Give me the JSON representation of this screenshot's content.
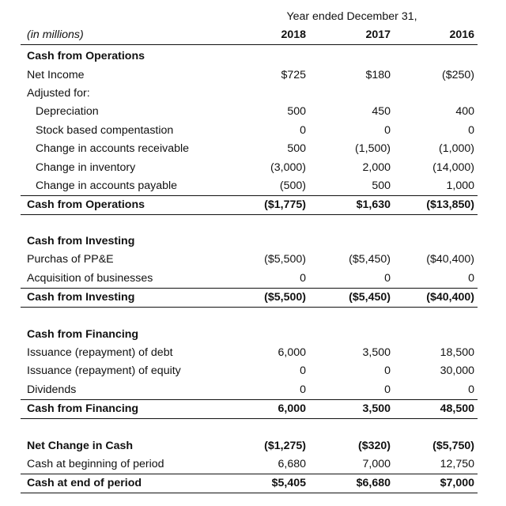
{
  "header": {
    "period_caption": "Year ended December 31,",
    "units_label": "(in millions)",
    "years": [
      "2018",
      "2017",
      "2016"
    ]
  },
  "sections": {
    "operations": {
      "heading": "Cash from Operations",
      "net_income": {
        "label": "Net Income",
        "values": [
          "$725",
          "$180",
          "($250)"
        ]
      },
      "adjusted_for": "Adjusted for:",
      "items": [
        {
          "label": "Depreciation",
          "values": [
            "500",
            "450",
            "400"
          ]
        },
        {
          "label": "Stock based compentastion",
          "values": [
            "0",
            "0",
            "0"
          ]
        },
        {
          "label": "Change in accounts receivable",
          "values": [
            "500",
            "(1,500)",
            "(1,000)"
          ]
        },
        {
          "label": "Change in inventory",
          "values": [
            "(3,000)",
            "2,000",
            "(14,000)"
          ]
        },
        {
          "label": "Change in accounts payable",
          "values": [
            "(500)",
            "500",
            "1,000"
          ]
        }
      ],
      "total": {
        "label": "Cash from Operations",
        "values": [
          "($1,775)",
          "$1,630",
          "($13,850)"
        ]
      }
    },
    "investing": {
      "heading": "Cash from Investing",
      "items": [
        {
          "label": "Purchas of PP&E",
          "values": [
            "($5,500)",
            "($5,450)",
            "($40,400)"
          ]
        },
        {
          "label": "Acquisition of businesses",
          "values": [
            "0",
            "0",
            "0"
          ]
        }
      ],
      "total": {
        "label": "Cash from Investing",
        "values": [
          "($5,500)",
          "($5,450)",
          "($40,400)"
        ]
      }
    },
    "financing": {
      "heading": "Cash from Financing",
      "items": [
        {
          "label": "Issuance (repayment) of debt",
          "values": [
            "6,000",
            "3,500",
            "18,500"
          ]
        },
        {
          "label": "Issuance (repayment) of equity",
          "values": [
            "0",
            "0",
            "30,000"
          ]
        },
        {
          "label": "Dividends",
          "values": [
            "0",
            "0",
            "0"
          ]
        }
      ],
      "total": {
        "label": "Cash from Financing",
        "values": [
          "6,000",
          "3,500",
          "48,500"
        ]
      }
    },
    "summary": {
      "net_change": {
        "label": "Net Change in Cash",
        "values": [
          "($1,275)",
          "($320)",
          "($5,750)"
        ]
      },
      "beginning": {
        "label": "Cash at beginning of period",
        "values": [
          "6,680",
          "7,000",
          "12,750"
        ]
      },
      "end": {
        "label": "Cash at end of period",
        "values": [
          "$5,405",
          "$6,680",
          "$7,000"
        ]
      }
    }
  }
}
